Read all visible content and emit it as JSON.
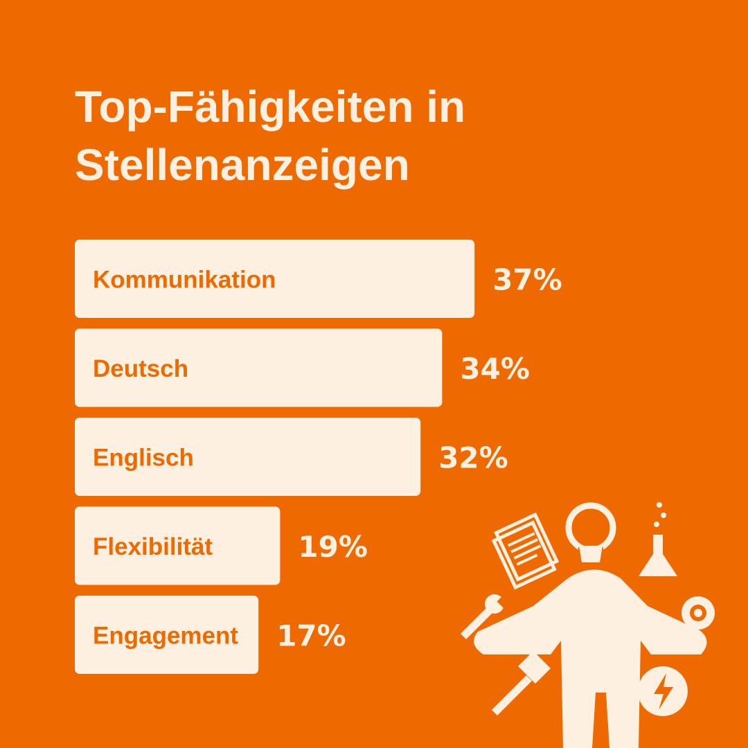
{
  "title_lines": [
    "Top-Fähigkeiten in",
    "Stellenanzeigen"
  ],
  "colors": {
    "background": "#ee6a00",
    "bar": "#fdf0e0",
    "bar_text": "#ee6a00",
    "value_text": "#fdf0e0"
  },
  "chart_data": {
    "type": "bar",
    "orientation": "horizontal",
    "title": "Top-Fähigkeiten in Stellenanzeigen",
    "categories": [
      "Kommunikation",
      "Deutsch",
      "Englisch",
      "Flexibilität",
      "Engagement"
    ],
    "values": [
      37,
      34,
      32,
      19,
      17
    ],
    "value_labels": [
      "37%",
      "34%",
      "32%",
      "19%",
      "17%"
    ],
    "unit": "%",
    "xlabel": "",
    "ylabel": "",
    "grid": false,
    "legend": "none"
  },
  "illustration": {
    "icons": [
      "document-icon",
      "lightbulb-icon",
      "flask-icon",
      "wrench-icon",
      "gear-icon",
      "hammer-icon",
      "lightning-icon",
      "person-icon"
    ]
  }
}
